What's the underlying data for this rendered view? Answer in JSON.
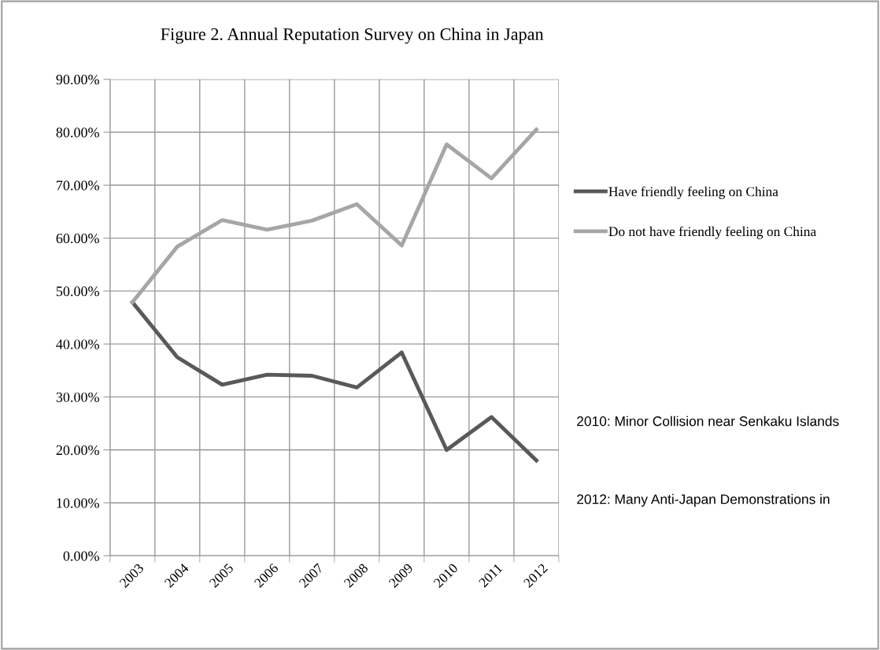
{
  "chart_data": {
    "type": "line",
    "title": "Figure 2. Annual Reputation Survey on China in Japan",
    "categories": [
      "2003",
      "2004",
      "2005",
      "2006",
      "2007",
      "2008",
      "2009",
      "2010",
      "2011",
      "2012"
    ],
    "series": [
      {
        "name": "Have friendly feeling on China",
        "color": "#595959",
        "values": [
          47.9,
          37.5,
          32.3,
          34.2,
          34.0,
          31.8,
          38.4,
          20.0,
          26.2,
          18.0
        ]
      },
      {
        "name": "Do not have friendly feeling on China",
        "color": "#a6a6a6",
        "values": [
          47.9,
          58.4,
          63.4,
          61.6,
          63.3,
          66.4,
          58.6,
          77.7,
          71.3,
          80.5
        ]
      }
    ],
    "ylim": [
      0,
      90
    ],
    "yticks": [
      {
        "value": 0,
        "label": "0.00%"
      },
      {
        "value": 10,
        "label": "10.00%"
      },
      {
        "value": 20,
        "label": "20.00%"
      },
      {
        "value": 30,
        "label": "30.00%"
      },
      {
        "value": 40,
        "label": "40.00%"
      },
      {
        "value": 50,
        "label": "50.00%"
      },
      {
        "value": 60,
        "label": "60.00%"
      },
      {
        "value": 70,
        "label": "70.00%"
      },
      {
        "value": 80,
        "label": "80.00%"
      },
      {
        "value": 90,
        "label": "90.00%"
      }
    ],
    "grid": true,
    "legend": "right",
    "marker": "none",
    "line_style": "solid",
    "annotations": [
      "2010: Minor Collision near Senkaku Islands",
      "2012: Many Anti-Japan Demonstrations in"
    ]
  }
}
